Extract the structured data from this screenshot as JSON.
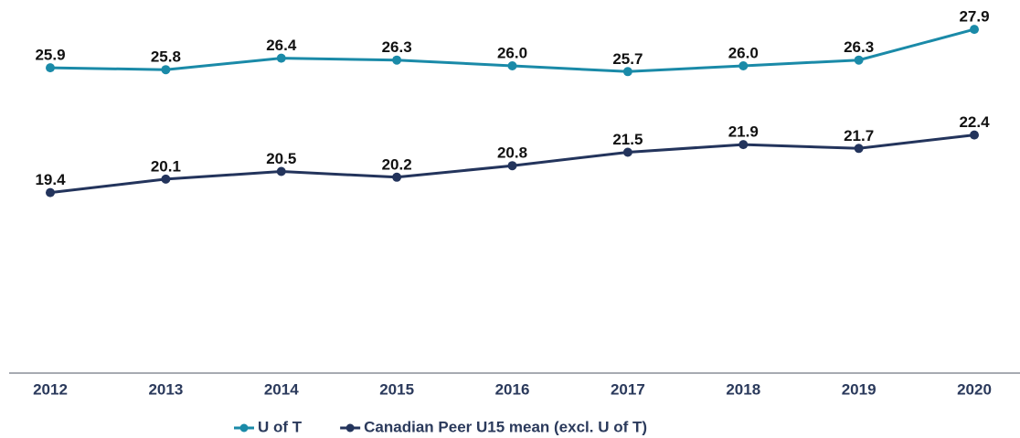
{
  "chart_data": {
    "type": "line",
    "categories": [
      "2012",
      "2013",
      "2014",
      "2015",
      "2016",
      "2017",
      "2018",
      "2019",
      "2020"
    ],
    "series": [
      {
        "name": "U of T",
        "color": "#1a8aa8",
        "values": [
          25.9,
          25.8,
          26.4,
          26.3,
          26.0,
          25.7,
          26.0,
          26.3,
          27.9
        ],
        "value_labels": [
          "25.9",
          "25.8",
          "26.4",
          "26.3",
          "26.0",
          "25.7",
          "26.0",
          "26.3",
          "27.9"
        ]
      },
      {
        "name": "Canadian Peer U15 mean (excl. U of T)",
        "color": "#23345c",
        "values": [
          19.4,
          20.1,
          20.5,
          20.2,
          20.8,
          21.5,
          21.9,
          21.7,
          22.4
        ],
        "value_labels": [
          "19.4",
          "20.1",
          "20.5",
          "20.2",
          "20.8",
          "21.5",
          "21.9",
          "21.7",
          "22.4"
        ]
      }
    ],
    "ylim": [
      10,
      29
    ]
  }
}
